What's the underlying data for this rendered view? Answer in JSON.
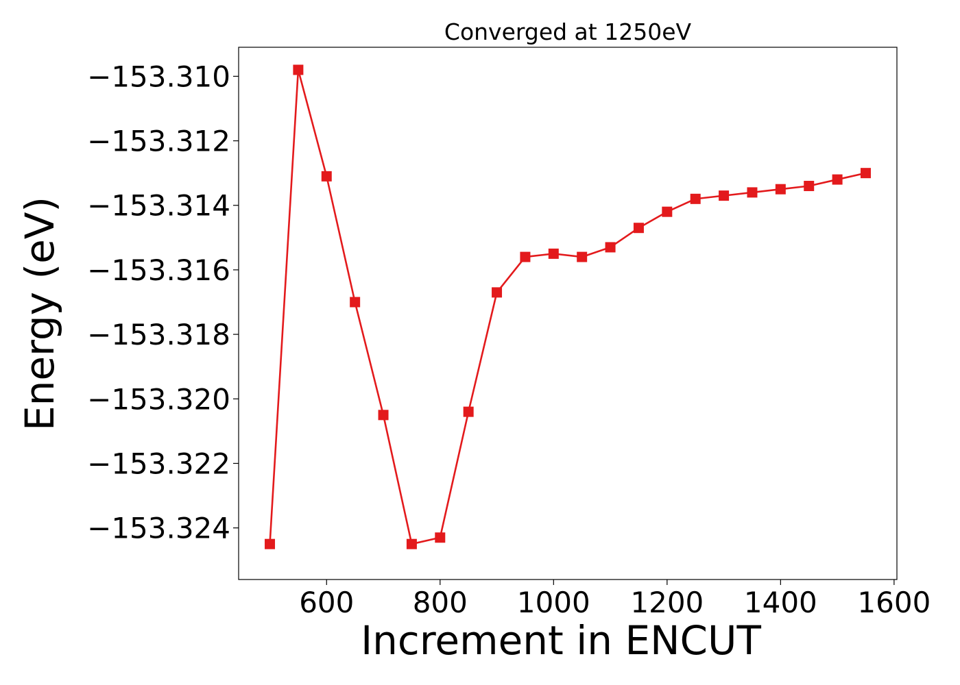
{
  "chart_data": {
    "type": "line",
    "title": "Converged at 1250eV",
    "xlabel": "Increment in ENCUT",
    "ylabel": "Energy (eV)",
    "xlim": [
      445,
      1605
    ],
    "ylim": [
      -153.3256,
      -153.3091
    ],
    "x_ticks": [
      600,
      800,
      1000,
      1200,
      1400,
      1600
    ],
    "x_tick_labels": [
      "600",
      "800",
      "1000",
      "1200",
      "1400",
      "1600"
    ],
    "y_ticks": [
      -153.31,
      -153.312,
      -153.314,
      -153.316,
      -153.318,
      -153.32,
      -153.322,
      -153.324
    ],
    "y_tick_labels": [
      "−153.310",
      "−153.312",
      "−153.314",
      "−153.316",
      "−153.318",
      "−153.320",
      "−153.322",
      "−153.324"
    ],
    "grid": false,
    "series": [
      {
        "color": "#e31a1c",
        "marker": "square",
        "x": [
          500,
          550,
          600,
          650,
          700,
          750,
          800,
          850,
          900,
          950,
          1000,
          1050,
          1100,
          1150,
          1200,
          1250,
          1300,
          1350,
          1400,
          1450,
          1500,
          1550
        ],
        "y": [
          -153.3245,
          -153.3098,
          -153.3131,
          -153.317,
          -153.3205,
          -153.3245,
          -153.3243,
          -153.3204,
          -153.3167,
          -153.3156,
          -153.3155,
          -153.3156,
          -153.3153,
          -153.3147,
          -153.3142,
          -153.3138,
          -153.3137,
          -153.3136,
          -153.3135,
          -153.3134,
          -153.3132,
          -153.313
        ]
      }
    ]
  }
}
